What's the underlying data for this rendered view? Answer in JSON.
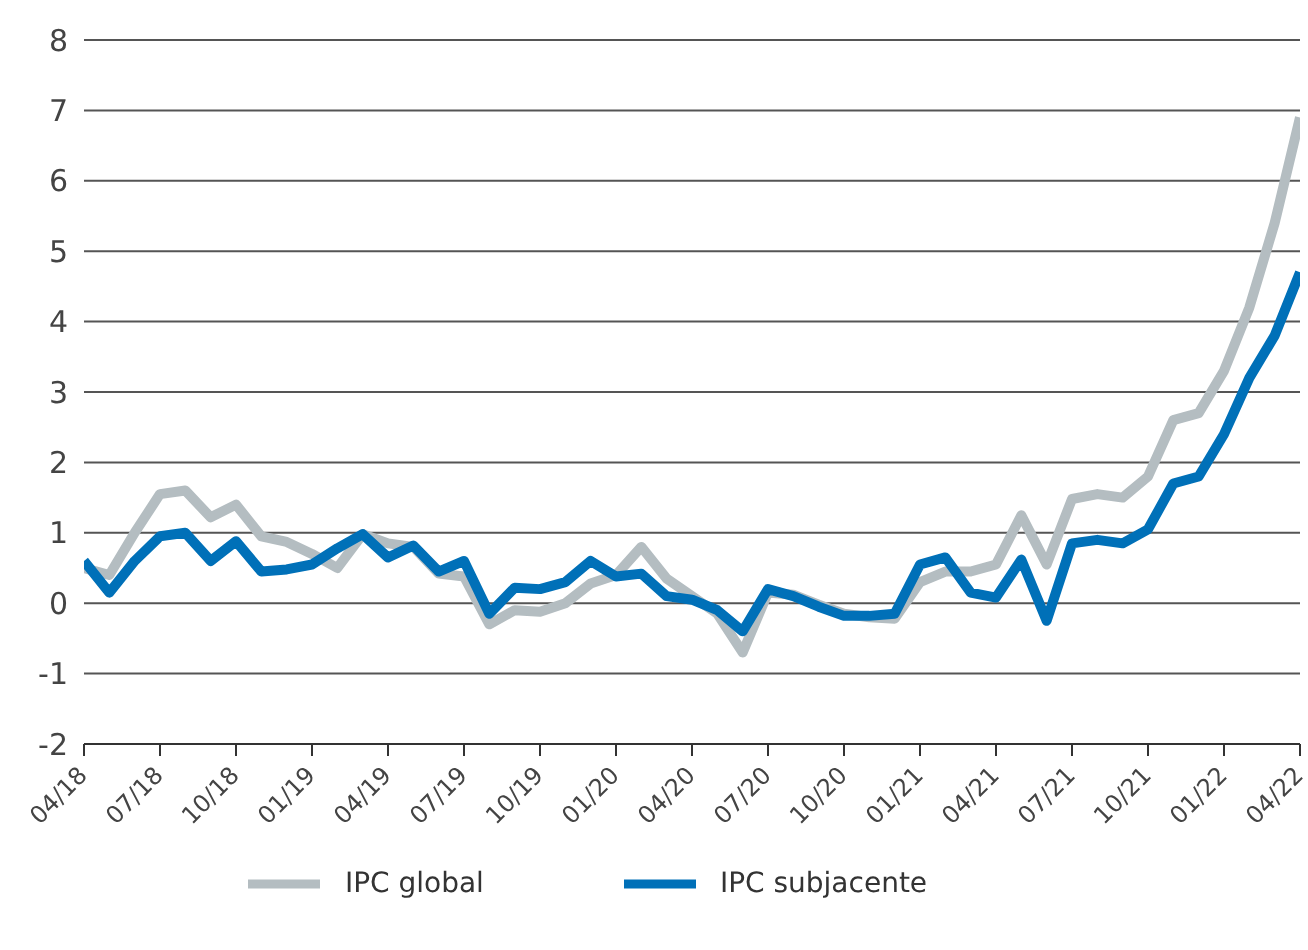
{
  "chart_data": {
    "type": "line",
    "x": [
      "2018-04",
      "2018-05",
      "2018-06",
      "2018-07",
      "2018-08",
      "2018-09",
      "2018-10",
      "2018-11",
      "2018-12",
      "2019-01",
      "2019-02",
      "2019-03",
      "2019-04",
      "2019-05",
      "2019-06",
      "2019-07",
      "2019-08",
      "2019-09",
      "2019-10",
      "2019-11",
      "2019-12",
      "2020-01",
      "2020-02",
      "2020-03",
      "2020-04",
      "2020-05",
      "2020-06",
      "2020-07",
      "2020-08",
      "2020-09",
      "2020-10",
      "2020-11",
      "2020-12",
      "2021-01",
      "2021-02",
      "2021-03",
      "2021-04",
      "2021-05",
      "2021-06",
      "2021-07",
      "2021-08",
      "2021-09",
      "2021-10",
      "2021-11",
      "2021-12",
      "2022-01",
      "2022-02",
      "2022-03",
      "2022-04"
    ],
    "series": [
      {
        "name": "IPC global",
        "color": "#b4bdc1",
        "values": [
          0.5,
          0.4,
          1.0,
          1.55,
          1.6,
          1.22,
          1.4,
          0.95,
          0.87,
          0.7,
          0.5,
          0.98,
          0.85,
          0.8,
          0.42,
          0.38,
          -0.3,
          -0.1,
          -0.12,
          0.0,
          0.28,
          0.4,
          0.8,
          0.35,
          0.1,
          -0.15,
          -0.7,
          0.15,
          0.12,
          -0.02,
          -0.15,
          -0.2,
          -0.22,
          0.3,
          0.45,
          0.45,
          0.55,
          1.25,
          0.55,
          1.48,
          1.55,
          1.5,
          1.8,
          2.6,
          2.7,
          3.3,
          4.2,
          5.4,
          6.9
        ]
      },
      {
        "name": "IPC subjacente",
        "color": "#0070b8",
        "values": [
          0.6,
          0.15,
          0.6,
          0.95,
          1.0,
          0.6,
          0.88,
          0.45,
          0.48,
          0.55,
          0.78,
          0.98,
          0.65,
          0.82,
          0.45,
          0.6,
          -0.15,
          0.22,
          0.2,
          0.3,
          0.6,
          0.38,
          0.42,
          0.1,
          0.05,
          -0.1,
          -0.4,
          0.2,
          0.1,
          -0.05,
          -0.18,
          -0.18,
          -0.15,
          0.55,
          0.65,
          0.15,
          0.08,
          0.62,
          -0.25,
          0.85,
          0.9,
          0.85,
          1.05,
          1.7,
          1.8,
          2.4,
          3.2,
          3.8,
          4.7
        ]
      }
    ],
    "xlim": [
      "2018-04",
      "2022-04"
    ],
    "xticks": [
      {
        "value": "2018-04",
        "label": "04/18"
      },
      {
        "value": "2018-07",
        "label": "07/18"
      },
      {
        "value": "2018-10",
        "label": "10/18"
      },
      {
        "value": "2019-01",
        "label": "01/19"
      },
      {
        "value": "2019-04",
        "label": "04/19"
      },
      {
        "value": "2019-07",
        "label": "07/19"
      },
      {
        "value": "2019-10",
        "label": "10/19"
      },
      {
        "value": "2020-01",
        "label": "01/20"
      },
      {
        "value": "2020-04",
        "label": "04/20"
      },
      {
        "value": "2020-07",
        "label": "07/20"
      },
      {
        "value": "2020-10",
        "label": "10/20"
      },
      {
        "value": "2021-01",
        "label": "01/21"
      },
      {
        "value": "2021-04",
        "label": "04/21"
      },
      {
        "value": "2021-07",
        "label": "07/21"
      },
      {
        "value": "2021-10",
        "label": "10/21"
      },
      {
        "value": "2022-01",
        "label": "01/22"
      },
      {
        "value": "2022-04",
        "label": "04/22"
      }
    ],
    "ylim": [
      -2,
      8
    ],
    "yticks": [
      -2,
      -1,
      0,
      1,
      2,
      3,
      4,
      5,
      6,
      7,
      8
    ],
    "grid": "y",
    "legend": "bottom",
    "marker": "none",
    "line_style": "solid"
  }
}
